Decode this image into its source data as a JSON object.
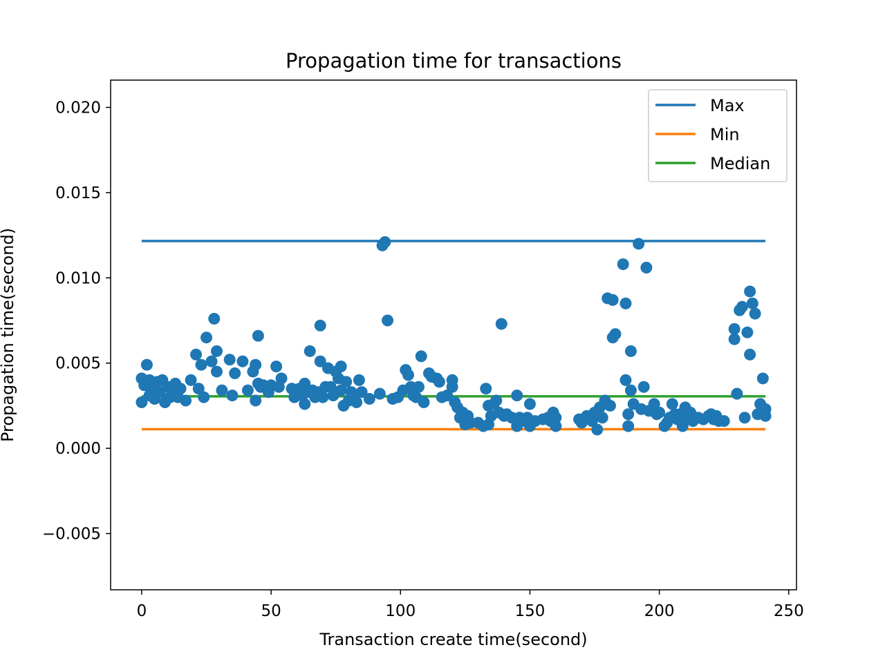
{
  "chart_data": {
    "type": "scatter",
    "title": "Propagation time for transactions",
    "xlabel": "Transaction create time(second)",
    "ylabel": "Propagation time(second)",
    "xlim": [
      -12,
      253
    ],
    "ylim": [
      -0.0083,
      0.0216
    ],
    "x_ticks": [
      0,
      50,
      100,
      150,
      200,
      250
    ],
    "x_tick_labels": [
      "0",
      "50",
      "100",
      "150",
      "200",
      "250"
    ],
    "y_ticks": [
      -0.005,
      0.0,
      0.005,
      0.01,
      0.015,
      0.02
    ],
    "y_tick_labels": [
      "−0.005",
      "0.000",
      "0.005",
      "0.010",
      "0.015",
      "0.020"
    ],
    "grid": false,
    "legend_position": "top-right",
    "lines": [
      {
        "name": "Max",
        "color": "#1f77b4",
        "x": [
          0,
          241
        ],
        "y": [
          0.01216,
          0.01216
        ]
      },
      {
        "name": "Min",
        "color": "#ff7f0e",
        "x": [
          0,
          241
        ],
        "y": [
          0.00112,
          0.00112
        ]
      },
      {
        "name": "Median",
        "color": "#2ca02c",
        "x": [
          0,
          241
        ],
        "y": [
          0.00305,
          0.00305
        ]
      }
    ],
    "scatter": {
      "color": "#1f77b4",
      "points": [
        [
          0,
          0.0041
        ],
        [
          0,
          0.0027
        ],
        [
          1,
          0.0037
        ],
        [
          2,
          0.0049
        ],
        [
          3,
          0.004
        ],
        [
          3,
          0.0031
        ],
        [
          4,
          0.0035
        ],
        [
          5,
          0.0029
        ],
        [
          6,
          0.0039
        ],
        [
          7,
          0.0033
        ],
        [
          8,
          0.004
        ],
        [
          9,
          0.0027
        ],
        [
          10,
          0.0036
        ],
        [
          11,
          0.003
        ],
        [
          12,
          0.0033
        ],
        [
          13,
          0.0038
        ],
        [
          14,
          0.003
        ],
        [
          15,
          0.0035
        ],
        [
          17,
          0.0028
        ],
        [
          19,
          0.004
        ],
        [
          21,
          0.0055
        ],
        [
          22,
          0.0035
        ],
        [
          23,
          0.0049
        ],
        [
          24,
          0.003
        ],
        [
          25,
          0.0065
        ],
        [
          27,
          0.0051
        ],
        [
          28,
          0.0076
        ],
        [
          29,
          0.0045
        ],
        [
          29,
          0.0057
        ],
        [
          31,
          0.0034
        ],
        [
          34,
          0.0052
        ],
        [
          35,
          0.0031
        ],
        [
          36,
          0.0044
        ],
        [
          39,
          0.0051
        ],
        [
          41,
          0.0034
        ],
        [
          43,
          0.0045
        ],
        [
          44,
          0.0049
        ],
        [
          44,
          0.0028
        ],
        [
          45,
          0.0038
        ],
        [
          45,
          0.0066
        ],
        [
          46,
          0.0036
        ],
        [
          47,
          0.0037
        ],
        [
          49,
          0.0033
        ],
        [
          50,
          0.0037
        ],
        [
          52,
          0.0048
        ],
        [
          53,
          0.0036
        ],
        [
          54,
          0.0041
        ],
        [
          58,
          0.0035
        ],
        [
          59,
          0.003
        ],
        [
          60,
          0.0033
        ],
        [
          61,
          0.0035
        ],
        [
          62,
          0.0031
        ],
        [
          63,
          0.0038
        ],
        [
          63,
          0.0026
        ],
        [
          64,
          0.0033
        ],
        [
          65,
          0.0057
        ],
        [
          66,
          0.0034
        ],
        [
          67,
          0.003
        ],
        [
          68,
          0.0033
        ],
        [
          69,
          0.0051
        ],
        [
          69,
          0.0072
        ],
        [
          70,
          0.003
        ],
        [
          71,
          0.0036
        ],
        [
          72,
          0.0047
        ],
        [
          73,
          0.0036
        ],
        [
          74,
          0.0031
        ],
        [
          75,
          0.0045
        ],
        [
          76,
          0.0041
        ],
        [
          77,
          0.0048
        ],
        [
          77,
          0.0034
        ],
        [
          78,
          0.0025
        ],
        [
          79,
          0.0039
        ],
        [
          80,
          0.0028
        ],
        [
          81,
          0.0033
        ],
        [
          82,
          0.0031
        ],
        [
          83,
          0.0027
        ],
        [
          84,
          0.004
        ],
        [
          85,
          0.0033
        ],
        [
          88,
          0.0029
        ],
        [
          92,
          0.0032
        ],
        [
          93,
          0.0119
        ],
        [
          94,
          0.0121
        ],
        [
          95,
          0.0075
        ],
        [
          97,
          0.0029
        ],
        [
          99,
          0.003
        ],
        [
          101,
          0.0034
        ],
        [
          102,
          0.0046
        ],
        [
          103,
          0.0043
        ],
        [
          104,
          0.0036
        ],
        [
          105,
          0.0031
        ],
        [
          106,
          0.003
        ],
        [
          107,
          0.0036
        ],
        [
          108,
          0.0054
        ],
        [
          109,
          0.0027
        ],
        [
          111,
          0.0044
        ],
        [
          112,
          0.0042
        ],
        [
          114,
          0.0041
        ],
        [
          115,
          0.0039
        ],
        [
          116,
          0.003
        ],
        [
          118,
          0.0031
        ],
        [
          120,
          0.004
        ],
        [
          120,
          0.0036
        ],
        [
          121,
          0.0027
        ],
        [
          122,
          0.0024
        ],
        [
          123,
          0.0018
        ],
        [
          124,
          0.0021
        ],
        [
          125,
          0.0014
        ],
        [
          126,
          0.0019
        ],
        [
          127,
          0.0015
        ],
        [
          130,
          0.0015
        ],
        [
          132,
          0.0013
        ],
        [
          133,
          0.0035
        ],
        [
          134,
          0.0014
        ],
        [
          134,
          0.0025
        ],
        [
          135,
          0.0019
        ],
        [
          136,
          0.0026
        ],
        [
          137,
          0.0028
        ],
        [
          138,
          0.0021
        ],
        [
          139,
          0.0073
        ],
        [
          140,
          0.0019
        ],
        [
          141,
          0.002
        ],
        [
          143,
          0.0018
        ],
        [
          145,
          0.0013
        ],
        [
          145,
          0.0031
        ],
        [
          146,
          0.0018
        ],
        [
          148,
          0.0016
        ],
        [
          149,
          0.0018
        ],
        [
          150,
          0.0013
        ],
        [
          150,
          0.0026
        ],
        [
          152,
          0.0016
        ],
        [
          155,
          0.0017
        ],
        [
          157,
          0.0018
        ],
        [
          158,
          0.0016
        ],
        [
          159,
          0.0021
        ],
        [
          160,
          0.0013
        ],
        [
          160,
          0.0018
        ],
        [
          169,
          0.0017
        ],
        [
          170,
          0.0015
        ],
        [
          172,
          0.0019
        ],
        [
          174,
          0.0016
        ],
        [
          175,
          0.0021
        ],
        [
          176,
          0.0011
        ],
        [
          177,
          0.0024
        ],
        [
          178,
          0.0018
        ],
        [
          179,
          0.0028
        ],
        [
          180,
          0.0088
        ],
        [
          181,
          0.0025
        ],
        [
          182,
          0.0087
        ],
        [
          182,
          0.0065
        ],
        [
          183,
          0.0067
        ],
        [
          186,
          0.0108
        ],
        [
          187,
          0.0085
        ],
        [
          187,
          0.004
        ],
        [
          188,
          0.002
        ],
        [
          188,
          0.0013
        ],
        [
          189,
          0.0057
        ],
        [
          189,
          0.0034
        ],
        [
          190,
          0.0026
        ],
        [
          192,
          0.012
        ],
        [
          193,
          0.0023
        ],
        [
          194,
          0.0036
        ],
        [
          195,
          0.0106
        ],
        [
          196,
          0.0022
        ],
        [
          198,
          0.0026
        ],
        [
          199,
          0.002
        ],
        [
          200,
          0.0021
        ],
        [
          202,
          0.0013
        ],
        [
          203,
          0.0015
        ],
        [
          204,
          0.0018
        ],
        [
          205,
          0.0026
        ],
        [
          206,
          0.002
        ],
        [
          207,
          0.0017
        ],
        [
          208,
          0.002
        ],
        [
          209,
          0.0013
        ],
        [
          210,
          0.0024
        ],
        [
          211,
          0.0018
        ],
        [
          212,
          0.0021
        ],
        [
          213,
          0.0016
        ],
        [
          215,
          0.0018
        ],
        [
          217,
          0.0017
        ],
        [
          219,
          0.0019
        ],
        [
          220,
          0.002
        ],
        [
          221,
          0.0017
        ],
        [
          222,
          0.0019
        ],
        [
          223,
          0.0016
        ],
        [
          225,
          0.0016
        ],
        [
          229,
          0.0064
        ],
        [
          229,
          0.007
        ],
        [
          230,
          0.0032
        ],
        [
          231,
          0.0081
        ],
        [
          232,
          0.0083
        ],
        [
          233,
          0.0018
        ],
        [
          234,
          0.0068
        ],
        [
          235,
          0.0092
        ],
        [
          235,
          0.0055
        ],
        [
          236,
          0.0085
        ],
        [
          237,
          0.0079
        ],
        [
          238,
          0.002
        ],
        [
          239,
          0.0026
        ],
        [
          240,
          0.0041
        ],
        [
          240,
          0.0021
        ],
        [
          241,
          0.0019
        ],
        [
          241,
          0.0023
        ]
      ]
    }
  }
}
